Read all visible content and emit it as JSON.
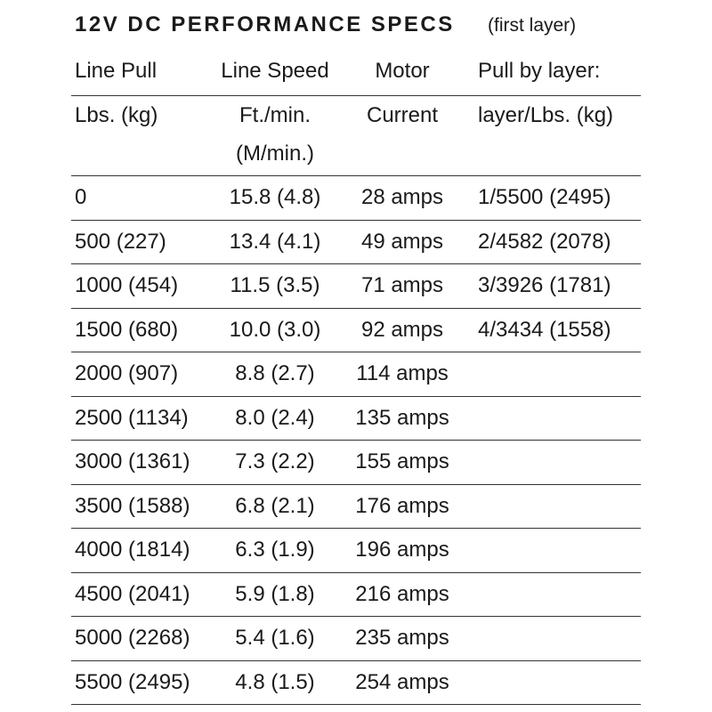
{
  "title": "12V DC PERFORMANCE SPECS",
  "subtitle": "(first layer)",
  "table": {
    "header": [
      [
        "Line Pull",
        "Line Speed",
        "Motor",
        "Pull by layer:"
      ],
      [
        "Lbs. (kg)",
        [
          "Ft./min.",
          "(M/min.)"
        ],
        "Current",
        "layer/Lbs. (kg)"
      ]
    ],
    "rows": [
      [
        "0",
        "15.8 (4.8)",
        "28 amps",
        "1/5500 (2495)"
      ],
      [
        "500 (227)",
        "13.4 (4.1)",
        "49 amps",
        "2/4582 (2078)"
      ],
      [
        "1000 (454)",
        "11.5 (3.5)",
        "71 amps",
        "3/3926 (1781)"
      ],
      [
        "1500 (680)",
        "10.0 (3.0)",
        "92 amps",
        "4/3434 (1558)"
      ],
      [
        "2000 (907)",
        "8.8 (2.7)",
        "114 amps"
      ],
      [
        "2500 (1134)",
        "8.0 (2.4)",
        "135 amps"
      ],
      [
        "3000 (1361)",
        "7.3 (2.2)",
        "155 amps"
      ],
      [
        "3500 (1588)",
        "6.8 (2.1)",
        "176 amps"
      ],
      [
        "4000 (1814)",
        "6.3 (1.9)",
        "196 amps"
      ],
      [
        "4500 (2041)",
        "5.9 (1.8)",
        "216 amps"
      ],
      [
        "5000 (2268)",
        "5.4 (1.6)",
        "235 amps"
      ],
      [
        "5500 (2495)",
        "4.8 (1.5)",
        "254 amps"
      ]
    ]
  }
}
